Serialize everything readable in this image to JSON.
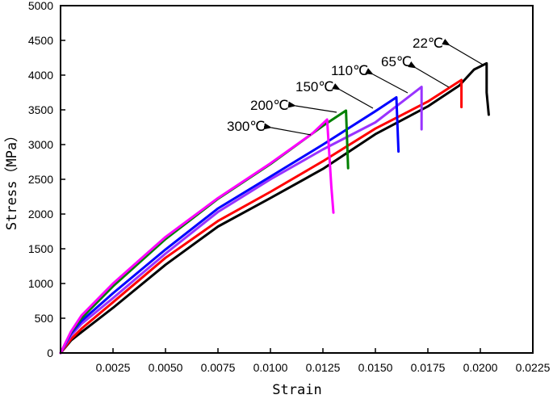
{
  "chart_data": {
    "type": "line",
    "title": "",
    "xlabel": "Strain",
    "ylabel": "Stress（MPa）",
    "xlim": [
      0,
      0.0225
    ],
    "ylim": [
      0,
      5000
    ],
    "grid": false,
    "legend": "none (inline arrow annotations)",
    "x_ticks": [
      "0.0025",
      "0.0050",
      "0.0075",
      "0.0100",
      "0.0125",
      "0.0150",
      "0.0175",
      "0.0200",
      "0.0225"
    ],
    "y_ticks": [
      "0",
      "500",
      "1000",
      "1500",
      "2000",
      "2500",
      "3000",
      "3500",
      "4000",
      "4500",
      "5000"
    ],
    "series": [
      {
        "name": "22℃",
        "color": "#000000",
        "x": [
          0,
          0.0005,
          0.001,
          0.0025,
          0.005,
          0.0075,
          0.01,
          0.0125,
          0.015,
          0.0175,
          0.019,
          0.0197,
          0.0203,
          0.0203,
          0.0204
        ],
        "y": [
          0,
          180,
          300,
          650,
          1270,
          1820,
          2230,
          2650,
          3150,
          3550,
          3850,
          4080,
          4170,
          3750,
          3430
        ]
      },
      {
        "name": "65℃",
        "color": "#ff0000",
        "x": [
          0,
          0.0005,
          0.001,
          0.0025,
          0.005,
          0.0075,
          0.01,
          0.0125,
          0.015,
          0.0175,
          0.0191,
          0.0191
        ],
        "y": [
          0,
          200,
          350,
          730,
          1370,
          1900,
          2320,
          2760,
          3230,
          3620,
          3930,
          3540
        ]
      },
      {
        "name": "110℃",
        "color": "#9933ff",
        "x": [
          0,
          0.0005,
          0.001,
          0.0025,
          0.005,
          0.0075,
          0.01,
          0.0125,
          0.015,
          0.0172,
          0.0172
        ],
        "y": [
          0,
          250,
          420,
          790,
          1430,
          2030,
          2500,
          2930,
          3320,
          3830,
          3220
        ]
      },
      {
        "name": "150℃",
        "color": "#0000ff",
        "x": [
          0,
          0.0005,
          0.001,
          0.0025,
          0.005,
          0.0075,
          0.01,
          0.0125,
          0.015,
          0.016,
          0.0161
        ],
        "y": [
          0,
          280,
          460,
          860,
          1490,
          2080,
          2540,
          3000,
          3480,
          3680,
          2900
        ]
      },
      {
        "name": "200℃",
        "color": "#008000",
        "x": [
          0,
          0.0005,
          0.001,
          0.0025,
          0.005,
          0.0075,
          0.01,
          0.0125,
          0.0136,
          0.0137
        ],
        "y": [
          0,
          300,
          500,
          960,
          1640,
          2220,
          2720,
          3270,
          3490,
          2660
        ]
      },
      {
        "name": "300℃",
        "color": "#ff00ff",
        "x": [
          0,
          0.0005,
          0.001,
          0.0025,
          0.005,
          0.0075,
          0.01,
          0.012,
          0.0127,
          0.0129,
          0.013
        ],
        "y": [
          0,
          310,
          540,
          1000,
          1670,
          2230,
          2730,
          3160,
          3360,
          2400,
          2020
        ]
      }
    ],
    "annotations": [
      {
        "text": "22℃",
        "points_to": "22℃ peak"
      },
      {
        "text": "65℃",
        "points_to": "65℃ curve"
      },
      {
        "text": "110℃",
        "points_to": "110℃ curve"
      },
      {
        "text": "150℃",
        "points_to": "150℃ curve"
      },
      {
        "text": "200℃",
        "points_to": "200℃ curve"
      },
      {
        "text": "300℃",
        "points_to": "300℃ curve"
      }
    ]
  },
  "labels": {
    "xlabel": "Strain",
    "ylabel": "Stress（MPa）",
    "ann_22": "22℃",
    "ann_65": "65℃",
    "ann_110": "110℃",
    "ann_150": "150℃",
    "ann_200": "200℃",
    "ann_300": "300℃"
  }
}
